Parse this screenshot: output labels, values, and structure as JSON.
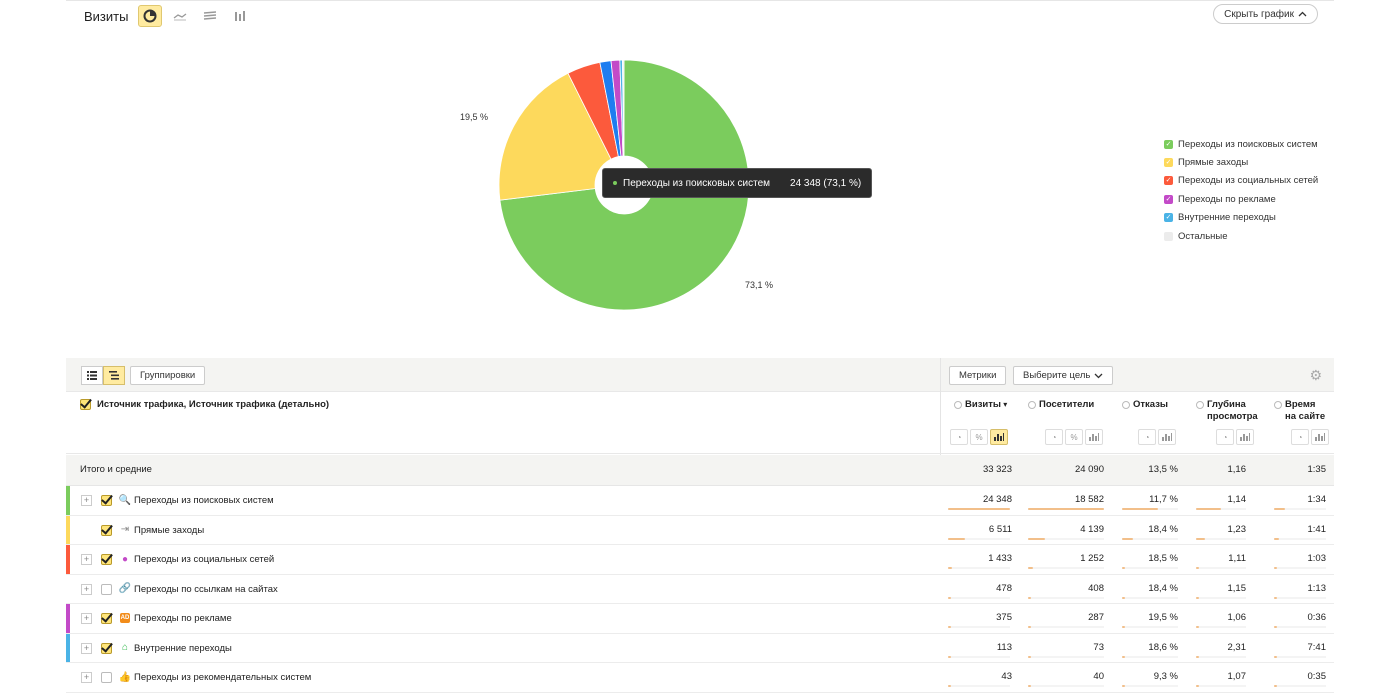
{
  "chart": {
    "title": "Визиты",
    "hide_label": "Скрыть график",
    "tooltip": {
      "name": "Переходы из поисковых систем",
      "value": "24 348 (73,1 %)"
    },
    "labels": [
      "19,5 %",
      "73,1 %"
    ]
  },
  "chart_data": {
    "type": "pie",
    "title": "Визиты",
    "categories": [
      "Переходы из поисковых систем",
      "Прямые заходы",
      "Переходы из социальных сетей",
      "Переходы по ссылкам на сайтах",
      "Переходы по рекламе",
      "Внутренние переходы",
      "Остальные"
    ],
    "values": [
      24348,
      6511,
      1433,
      478,
      375,
      113,
      65
    ],
    "colors": [
      "#7bcc5d",
      "#fdd95c",
      "#fc5a3c",
      "#1e7df0",
      "#c34ac8",
      "#4ab3e6",
      "#ececec"
    ],
    "slice_labels": [
      "73,1 %",
      "19,5 %",
      "",
      "",
      "",
      "",
      ""
    ],
    "legend_position": "right"
  },
  "legend": [
    {
      "label": "Переходы из поисковых систем",
      "color": "#7bcc5d",
      "checked": true
    },
    {
      "label": "Прямые заходы",
      "color": "#fdd95c",
      "checked": true
    },
    {
      "label": "Переходы из социальных сетей",
      "color": "#fc5a3c",
      "checked": true
    },
    {
      "label": "Переходы по рекламе",
      "color": "#c34ac8",
      "checked": true
    },
    {
      "label": "Внутренние переходы",
      "color": "#4ab3e6",
      "checked": true
    },
    {
      "label": "Остальные",
      "color": "#ececec",
      "checked": false
    }
  ],
  "toolbar": {
    "groupings": "Группировки",
    "metrics": "Метрики",
    "goal": "Выберите цель"
  },
  "table": {
    "dimension": "Источник трафика, Источник трафика (детально)",
    "columns": [
      {
        "label": "Визиты",
        "label2": "",
        "sorted": true
      },
      {
        "label": "Посетители",
        "label2": ""
      },
      {
        "label": "Отказы",
        "label2": ""
      },
      {
        "label": "Глубина",
        "label2": "просмотра"
      },
      {
        "label": "Время",
        "label2": "на сайте"
      }
    ],
    "totals": {
      "label": "Итого и средние",
      "values": [
        "33 323",
        "24 090",
        "13,5 %",
        "1,16",
        "1:35"
      ]
    },
    "rows": [
      {
        "name": "Переходы из поисковых систем",
        "icon": "search-icon",
        "glyph": "🔍",
        "icon_color": "#f04a3a",
        "stripe": "#7bcc5d",
        "checked": true,
        "expand": true,
        "values": [
          "24 348",
          "18 582",
          "11,7 %",
          "1,14",
          "1:34"
        ],
        "bars": [
          1,
          1,
          0.64,
          0.49,
          0.21
        ]
      },
      {
        "name": "Прямые заходы",
        "icon": "direct-entry-icon",
        "glyph": "⇥",
        "icon_color": "#888888",
        "stripe": "#fdd95c",
        "checked": true,
        "expand": false,
        "values": [
          "6 511",
          "4 139",
          "18,4 %",
          "1,23",
          "1:41"
        ],
        "bars": [
          0.27,
          0.22,
          0.19,
          0.18,
          0.1
        ]
      },
      {
        "name": "Переходы из социальных сетей",
        "icon": "social-user-icon",
        "glyph": "●",
        "icon_color": "#c34ac8",
        "stripe": "#fc5a3c",
        "checked": true,
        "expand": true,
        "values": [
          "1 433",
          "1 252",
          "18,5 %",
          "1,11",
          "1:03"
        ],
        "bars": [
          0.06,
          0.07,
          0.04,
          0.04,
          0.02
        ]
      },
      {
        "name": "Переходы по ссылкам на сайтах",
        "icon": "link-icon",
        "glyph": "🔗",
        "icon_color": "#1e7df0",
        "stripe": "",
        "checked": false,
        "expand": true,
        "values": [
          "478",
          "408",
          "18,4 %",
          "1,15",
          "1:13"
        ],
        "bars": [
          0.02,
          0.02,
          0.02,
          0.02,
          0.01
        ]
      },
      {
        "name": "Переходы по рекламе",
        "icon": "ad-icon",
        "glyph": "AD",
        "icon_color": "#f28c1a",
        "stripe": "#c34ac8",
        "checked": true,
        "expand": true,
        "values": [
          "375",
          "287",
          "19,5 %",
          "1,06",
          "0:36"
        ],
        "bars": [
          0.02,
          0.02,
          0.02,
          0.01,
          0.01
        ]
      },
      {
        "name": "Внутренние переходы",
        "icon": "home-icon",
        "glyph": "⌂",
        "icon_color": "#2fb84a",
        "stripe": "#4ab3e6",
        "checked": true,
        "expand": true,
        "values": [
          "113",
          "73",
          "18,6 %",
          "2,31",
          "7:41"
        ],
        "bars": [
          0.01,
          0.01,
          0.01,
          0.02,
          0.05
        ]
      },
      {
        "name": "Переходы из рекомендательных систем",
        "icon": "thumb-up-icon",
        "glyph": "👍",
        "icon_color": "#e85bb0",
        "stripe": "",
        "checked": false,
        "expand": true,
        "values": [
          "43",
          "40",
          "9,3 %",
          "1,07",
          "0:35"
        ],
        "bars": [
          0.01,
          0.01,
          0.01,
          0.01,
          0.01
        ]
      }
    ]
  }
}
